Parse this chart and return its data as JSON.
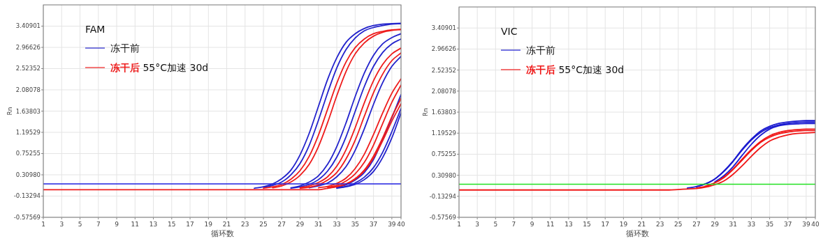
{
  "chart_data": [
    {
      "type": "line",
      "legend_title": "FAM",
      "xlabel": "循环数",
      "ylabel": "Rn",
      "legend": "top left",
      "grid": true,
      "xlim": [
        1,
        40
      ],
      "ylim": [
        -0.57569,
        3.85175
      ],
      "xticks": [
        1,
        3,
        5,
        7,
        9,
        11,
        13,
        15,
        17,
        19,
        21,
        23,
        25,
        27,
        29,
        31,
        33,
        35,
        37,
        39,
        40
      ],
      "yticks": [
        {
          "value": -0.57569,
          "label": "-0.57569"
        },
        {
          "value": -0.13294,
          "label": "-0.13294"
        },
        {
          "value": 0.3098,
          "label": "0.30980"
        },
        {
          "value": 0.75255,
          "label": "0.75255"
        },
        {
          "value": 1.19529,
          "label": "1.19529"
        },
        {
          "value": 1.63803,
          "label": "1.63803"
        },
        {
          "value": 2.08078,
          "label": "2.08078"
        },
        {
          "value": 2.52352,
          "label": "2.52352"
        },
        {
          "value": 2.96626,
          "label": "2.96626"
        },
        {
          "value": 3.40901,
          "label": "3.40901"
        }
      ],
      "x": [
        1,
        15,
        20,
        22,
        24,
        25,
        26,
        27,
        28,
        29,
        30,
        31,
        32,
        33,
        34,
        35,
        36,
        37,
        38,
        39,
        40
      ],
      "ref_lines": [
        {
          "axis": "y",
          "value": 0.12,
          "color": "#1f1fe0"
        }
      ],
      "series": [
        {
          "name": "冻干前",
          "color": "#2323cc",
          "values": [
            null,
            null,
            null,
            null,
            0.03,
            0.06,
            0.12,
            0.23,
            0.41,
            0.73,
            1.18,
            1.74,
            2.3,
            2.75,
            3.07,
            3.25,
            3.36,
            3.42,
            3.45,
            3.46,
            3.47
          ]
        },
        {
          "color": "#2323cc",
          "values": [
            null,
            null,
            null,
            null,
            null,
            0.05,
            0.09,
            0.16,
            0.31,
            0.55,
            0.93,
            1.45,
            2.02,
            2.54,
            2.92,
            3.16,
            3.31,
            3.38,
            3.42,
            3.45,
            3.46
          ]
        },
        {
          "color": "#2323cc",
          "values": [
            null,
            null,
            null,
            null,
            null,
            null,
            null,
            null,
            0.04,
            0.08,
            0.16,
            0.29,
            0.53,
            0.9,
            1.39,
            1.94,
            2.43,
            2.8,
            3.04,
            3.17,
            3.25
          ]
        },
        {
          "color": "#2323cc",
          "values": [
            null,
            null,
            null,
            null,
            null,
            null,
            null,
            null,
            0.03,
            0.06,
            0.11,
            0.21,
            0.39,
            0.68,
            1.1,
            1.63,
            2.15,
            2.57,
            2.86,
            3.04,
            3.14
          ]
        },
        {
          "color": "#2323cc",
          "values": [
            null,
            null,
            null,
            null,
            null,
            null,
            null,
            null,
            null,
            null,
            0.04,
            0.08,
            0.14,
            0.27,
            0.48,
            0.82,
            1.27,
            1.78,
            2.23,
            2.57,
            2.78
          ]
        },
        {
          "color": "#2323cc",
          "values": [
            null,
            null,
            null,
            null,
            null,
            null,
            null,
            null,
            null,
            null,
            null,
            null,
            null,
            0.05,
            0.1,
            0.2,
            0.36,
            0.63,
            1.05,
            1.5,
            1.98
          ]
        },
        {
          "color": "#2323cc",
          "values": [
            null,
            null,
            null,
            null,
            null,
            null,
            null,
            null,
            null,
            null,
            null,
            null,
            null,
            0.04,
            0.07,
            0.14,
            0.26,
            0.46,
            0.78,
            1.21,
            1.69
          ]
        },
        {
          "color": "#2323cc",
          "values": [
            null,
            null,
            null,
            null,
            null,
            null,
            null,
            null,
            null,
            null,
            null,
            null,
            null,
            0.03,
            0.06,
            0.11,
            0.21,
            0.38,
            0.67,
            1.08,
            1.6
          ]
        },
        {
          "name": "冻干后 55°C加速 30d",
          "color": "#ee1c1c",
          "values": [
            null,
            null,
            null,
            null,
            null,
            0.03,
            0.06,
            0.11,
            0.22,
            0.4,
            0.7,
            1.14,
            1.68,
            2.22,
            2.66,
            2.96,
            3.14,
            3.25,
            3.3,
            3.33,
            3.34
          ]
        },
        {
          "color": "#ee1c1c",
          "values": [
            null,
            null,
            null,
            null,
            null,
            null,
            0.04,
            0.08,
            0.16,
            0.3,
            0.53,
            0.9,
            1.4,
            1.96,
            2.46,
            2.83,
            3.06,
            3.2,
            3.28,
            3.32,
            3.34
          ]
        },
        {
          "color": "#ee1c1c",
          "values": [
            null,
            null,
            null,
            null,
            null,
            null,
            null,
            null,
            null,
            0.04,
            0.08,
            0.15,
            0.27,
            0.49,
            0.83,
            1.29,
            1.81,
            2.27,
            2.61,
            2.83,
            2.95
          ]
        },
        {
          "color": "#ee1c1c",
          "values": [
            null,
            null,
            null,
            null,
            null,
            null,
            null,
            null,
            null,
            0.03,
            0.05,
            0.1,
            0.2,
            0.36,
            0.64,
            1.03,
            1.53,
            2.02,
            2.41,
            2.69,
            2.85
          ]
        },
        {
          "color": "#ee1c1c",
          "values": [
            null,
            null,
            null,
            null,
            null,
            null,
            null,
            null,
            null,
            null,
            null,
            0.04,
            0.07,
            0.13,
            0.24,
            0.44,
            0.74,
            1.15,
            1.6,
            2.01,
            2.31
          ]
        },
        {
          "color": "#ee1c1c",
          "values": [
            null,
            null,
            null,
            null,
            null,
            null,
            null,
            null,
            null,
            null,
            null,
            null,
            0.05,
            0.09,
            0.18,
            0.33,
            0.57,
            0.93,
            1.38,
            1.82,
            2.18
          ]
        },
        {
          "color": "#ee1c1c",
          "values": [
            null,
            null,
            null,
            null,
            null,
            null,
            null,
            null,
            null,
            null,
            null,
            null,
            0.03,
            0.07,
            0.12,
            0.23,
            0.41,
            0.7,
            1.08,
            1.52,
            1.9
          ]
        },
        {
          "color": "#ee1c1c",
          "values": [
            0,
            0,
            0,
            0,
            0,
            0,
            0,
            0,
            0,
            0,
            0,
            0,
            0.03,
            0.06,
            0.12,
            0.22,
            0.39,
            0.66,
            1.02,
            1.43,
            1.79
          ]
        }
      ]
    },
    {
      "type": "line",
      "legend_title": "VIC",
      "xlabel": "循环数",
      "ylabel": "Rn",
      "legend": "top left",
      "grid": true,
      "xlim": [
        1,
        40
      ],
      "ylim": [
        -0.57569,
        3.85175
      ],
      "xticks": [
        1,
        3,
        5,
        7,
        9,
        11,
        13,
        15,
        17,
        19,
        21,
        23,
        25,
        27,
        29,
        31,
        33,
        35,
        37,
        39,
        40
      ],
      "yticks": [
        {
          "value": -0.57569,
          "label": "-0.57569"
        },
        {
          "value": -0.13294,
          "label": "-0.13294"
        },
        {
          "value": 0.3098,
          "label": "0.30980"
        },
        {
          "value": 0.75255,
          "label": "0.75255"
        },
        {
          "value": 1.19529,
          "label": "1.19529"
        },
        {
          "value": 1.63803,
          "label": "1.63803"
        },
        {
          "value": 2.08078,
          "label": "2.08078"
        },
        {
          "value": 2.52352,
          "label": "2.52352"
        },
        {
          "value": 2.96626,
          "label": "2.96626"
        },
        {
          "value": 3.40901,
          "label": "3.40901"
        }
      ],
      "x": [
        1,
        15,
        20,
        22,
        24,
        25,
        26,
        27,
        28,
        29,
        30,
        31,
        32,
        33,
        34,
        35,
        36,
        37,
        38,
        39,
        40
      ],
      "ref_lines": [
        {
          "axis": "y",
          "value": 0.12,
          "color": "#22e022"
        }
      ],
      "series": [
        {
          "name": "冻干前",
          "color": "#1a1ad0",
          "values": [
            null,
            null,
            null,
            null,
            null,
            null,
            0.04,
            0.07,
            0.13,
            0.23,
            0.4,
            0.61,
            0.86,
            1.07,
            1.24,
            1.34,
            1.4,
            1.43,
            1.45,
            1.46,
            1.46
          ]
        },
        {
          "color": "#1a1ad0",
          "values": [
            null,
            null,
            null,
            null,
            null,
            null,
            null,
            0.07,
            0.13,
            0.23,
            0.39,
            0.6,
            0.84,
            1.05,
            1.21,
            1.31,
            1.37,
            1.4,
            1.42,
            1.43,
            1.43
          ]
        },
        {
          "color": "#1a1ad0",
          "values": [
            null,
            null,
            null,
            null,
            null,
            null,
            null,
            null,
            null,
            0.17,
            0.3,
            0.49,
            0.73,
            0.96,
            1.15,
            1.28,
            1.35,
            1.38,
            1.39,
            1.4,
            1.4
          ]
        },
        {
          "name": "冻干后 55°C加速 30d",
          "color": "#f01616",
          "values": [
            null,
            null,
            null,
            null,
            null,
            null,
            null,
            0.04,
            0.08,
            0.15,
            0.27,
            0.44,
            0.65,
            0.85,
            1.02,
            1.14,
            1.21,
            1.25,
            1.27,
            1.28,
            1.28
          ]
        },
        {
          "color": "#f01616",
          "values": [
            null,
            null,
            null,
            null,
            null,
            null,
            null,
            null,
            0.08,
            0.15,
            0.26,
            0.43,
            0.63,
            0.83,
            1.0,
            1.11,
            1.18,
            1.22,
            1.24,
            1.25,
            1.25
          ]
        },
        {
          "color": "#f01616",
          "values": [
            0,
            0,
            0,
            0,
            0,
            0.01,
            0.02,
            0.03,
            0.06,
            0.11,
            0.19,
            0.33,
            0.51,
            0.71,
            0.89,
            1.03,
            1.11,
            1.16,
            1.19,
            1.2,
            1.21
          ]
        }
      ]
    }
  ]
}
